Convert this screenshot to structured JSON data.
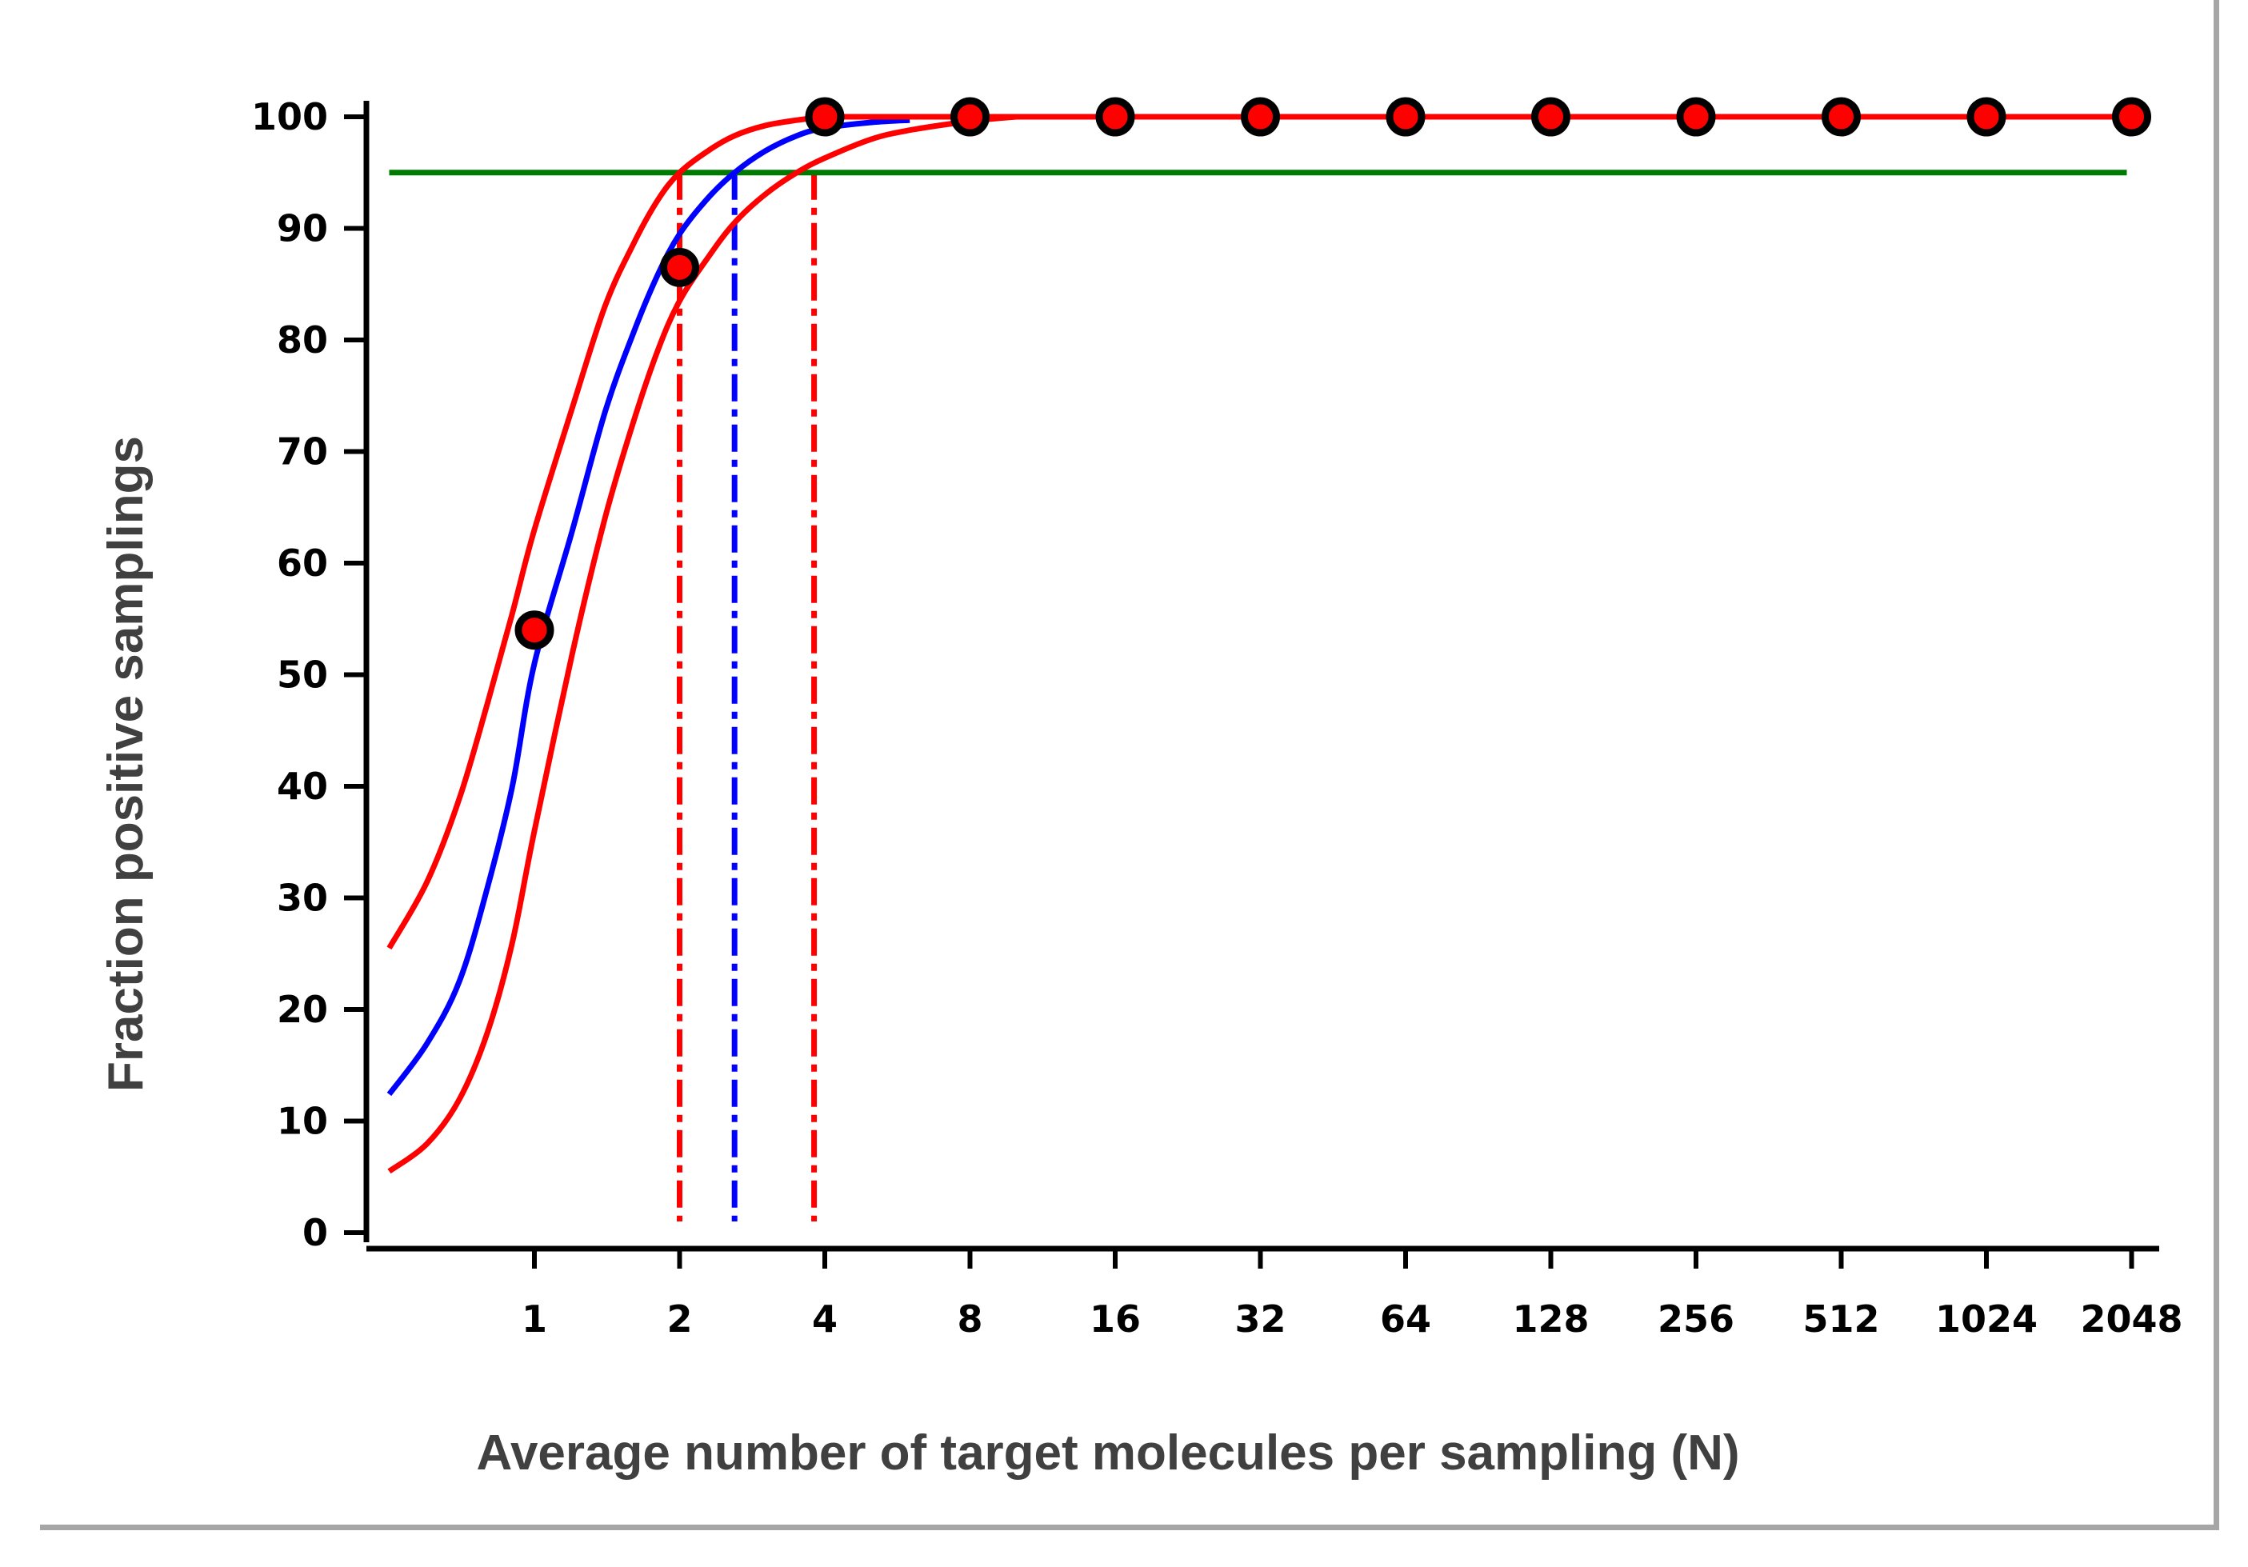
{
  "chart_data": {
    "type": "line",
    "xlabel": "Average number of target molecules per sampling (N)",
    "ylabel": "Fraction positive samplings",
    "x_scale": "log2",
    "x_ticks": [
      "1",
      "2",
      "4",
      "8",
      "16",
      "32",
      "64",
      "128",
      "256",
      "512",
      "1024",
      "2048"
    ],
    "x_tick_values": [
      1,
      2,
      4,
      8,
      16,
      32,
      64,
      128,
      256,
      512,
      1024,
      2048
    ],
    "y_ticks": [
      "0",
      "10",
      "20",
      "30",
      "40",
      "50",
      "60",
      "70",
      "80",
      "90",
      "100"
    ],
    "ylim": [
      0,
      100
    ],
    "xlim": [
      0.45,
      2048
    ],
    "grid": false,
    "colors": {
      "blue": "#0000ff",
      "red": "#ff0000",
      "green": "#007a00",
      "marker_fill": "#ff0000",
      "marker_edge": "#000000",
      "axis": "#000000",
      "axis_title": "#404040"
    },
    "series": [
      {
        "kind": "curve",
        "color": "#0000ff",
        "x": [
          0.5,
          0.6,
          0.7,
          0.8,
          0.9,
          1.0,
          1.2,
          1.4,
          1.6,
          1.8,
          2.0,
          2.3,
          2.6,
          3.0,
          3.5,
          4.0,
          5.0,
          6.0
        ],
        "y": [
          12.4,
          17.0,
          22.6,
          31.0,
          40.0,
          51.0,
          63.0,
          73.5,
          80.5,
          85.8,
          89.5,
          92.8,
          95.0,
          96.9,
          98.3,
          99.0,
          99.5,
          99.7
        ]
      },
      {
        "kind": "curve",
        "color": "#ff0000",
        "x": [
          0.5,
          0.6,
          0.7,
          0.8,
          0.9,
          1.0,
          1.2,
          1.4,
          1.6,
          1.8,
          2.0,
          2.3,
          2.6,
          3.0,
          3.5,
          4.0,
          5.0,
          6.0,
          8.0,
          10.0
        ],
        "y": [
          5.5,
          8.0,
          12.0,
          18.0,
          26.0,
          36.0,
          52.0,
          64.0,
          72.5,
          79.0,
          83.5,
          87.5,
          90.5,
          93.0,
          95.0,
          96.3,
          98.0,
          98.8,
          99.6,
          100.0
        ]
      },
      {
        "kind": "curve",
        "color": "#ff0000",
        "x": [
          0.5,
          0.6,
          0.7,
          0.8,
          0.9,
          1.0,
          1.2,
          1.4,
          1.6,
          1.8,
          2.0,
          2.3,
          2.6,
          3.0,
          3.5,
          4.0
        ],
        "y": [
          25.5,
          31.5,
          39.0,
          47.5,
          55.5,
          63.0,
          74.0,
          83.0,
          88.5,
          92.5,
          95.0,
          97.0,
          98.3,
          99.2,
          99.7,
          100.0
        ]
      }
    ],
    "points": {
      "x": [
        1,
        2,
        4,
        8,
        16,
        32,
        64,
        128,
        256,
        512,
        1024,
        2048
      ],
      "y": [
        54,
        86.5,
        100,
        100,
        100,
        100,
        100,
        100,
        100,
        100,
        100,
        100
      ],
      "connected_from_x": 4
    },
    "hlines": [
      {
        "y": 95,
        "color": "#007a00",
        "x_from": 0.5,
        "x_to": 2048
      }
    ],
    "vlines": [
      {
        "x": 2.0,
        "color": "#ff0000",
        "style": "dash-dot",
        "y_to": 95
      },
      {
        "x": 2.6,
        "color": "#0000ff",
        "style": "dash-dot",
        "y_to": 95
      },
      {
        "x": 3.8,
        "color": "#ff0000",
        "style": "dash-dot",
        "y_to": 95
      }
    ]
  }
}
